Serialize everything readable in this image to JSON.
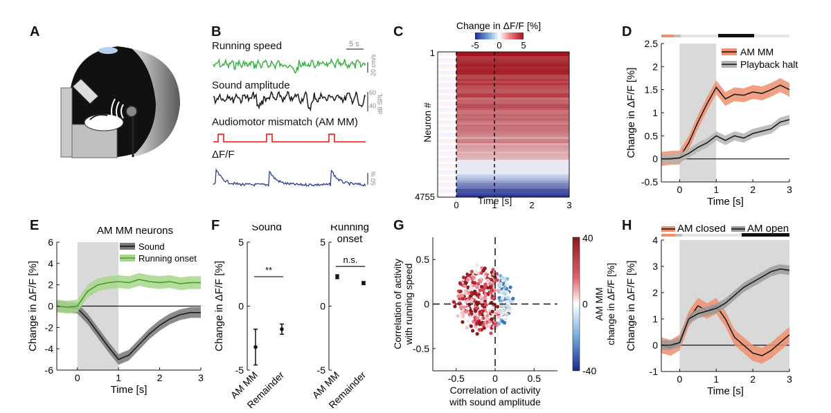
{
  "panels": {
    "A": "A",
    "B": "B",
    "C": "C",
    "D": "D",
    "E": "E",
    "F": "F",
    "G": "G",
    "H": "H"
  },
  "panelB": {
    "trace_running": "Running speed",
    "trace_sound": "Sound amplitude",
    "trace_mismatch": "Audiomotor mismatch (AM MM)",
    "trace_dff": "ΔF/F",
    "scale_time": "5 s",
    "scale_speed": "20 cm/s",
    "scale_db_hi": "60",
    "scale_db_lo": "40",
    "scale_db_unit": "dB SPL",
    "scale_dff": "50 %"
  },
  "colors": {
    "green": "#3cb043",
    "black": "#1a1a1a",
    "red": "#e8332a",
    "blue": "#2a3a8f",
    "orange": "#e8734f",
    "gray": "#9a9a9a",
    "lightgreen": "#8ec96b",
    "shade": "#d9d9d9"
  },
  "chart_data": [
    {
      "id": "C",
      "type": "heatmap",
      "colorbar_title": "Change in ΔF/F [%]",
      "colorbar_ticks": [
        "-5",
        "0",
        "5"
      ],
      "ylabel": "Neuron #",
      "xlabel": "Time [s]",
      "y_ticks": [
        "1",
        "4755"
      ],
      "x_ticks": [
        "0",
        "1",
        "2",
        "3"
      ],
      "xlim": [
        -0.5,
        3
      ],
      "rows": 4755
    },
    {
      "id": "D",
      "type": "line",
      "xlabel": "Time [s]",
      "ylabel": "Change in ΔF/F [%]",
      "xlim": [
        -0.5,
        3
      ],
      "ylim": [
        -0.5,
        2.5
      ],
      "x_ticks": [
        "0",
        "1",
        "2",
        "3"
      ],
      "y_ticks": [
        "-0.5",
        "0",
        "0.5",
        "1",
        "1.5",
        "2",
        "2.5"
      ],
      "shaded_window": [
        0,
        1
      ],
      "legend": [
        "AM MM",
        "Playback halt"
      ],
      "x": [
        -0.5,
        -0.25,
        0,
        0.25,
        0.5,
        0.75,
        1.0,
        1.25,
        1.5,
        1.75,
        2.0,
        2.25,
        2.5,
        2.75,
        3.0
      ],
      "series": [
        {
          "name": "AM MM",
          "values": [
            0.0,
            0.02,
            0.03,
            0.35,
            0.8,
            1.2,
            1.55,
            1.3,
            1.4,
            1.38,
            1.45,
            1.42,
            1.5,
            1.6,
            1.5
          ],
          "err": 0.15
        },
        {
          "name": "Playback halt",
          "values": [
            0.0,
            0.0,
            0.02,
            0.12,
            0.25,
            0.35,
            0.5,
            0.4,
            0.5,
            0.45,
            0.55,
            0.6,
            0.65,
            0.8,
            0.85
          ],
          "err": 0.1
        }
      ]
    },
    {
      "id": "E",
      "type": "line",
      "title": "AM MM neurons",
      "xlabel": "Time [s]",
      "ylabel": "Change in ΔF/F [%]",
      "xlim": [
        -0.5,
        3
      ],
      "ylim": [
        -6,
        6
      ],
      "x_ticks": [
        "0",
        "1",
        "2",
        "3"
      ],
      "y_ticks": [
        "-6",
        "-4",
        "-2",
        "0",
        "2",
        "4",
        "6"
      ],
      "shaded_window": [
        0,
        1
      ],
      "legend": [
        "Sound",
        "Running onset"
      ],
      "x": [
        -0.5,
        -0.25,
        0,
        0.25,
        0.5,
        0.75,
        1.0,
        1.25,
        1.5,
        1.75,
        2.0,
        2.25,
        2.5,
        2.75,
        3.0
      ],
      "series": [
        {
          "name": "Sound",
          "values": [
            0.0,
            -0.1,
            -0.2,
            -1.2,
            -2.5,
            -3.8,
            -5.0,
            -4.6,
            -3.6,
            -2.6,
            -1.8,
            -1.2,
            -0.8,
            -0.6,
            -0.6
          ],
          "err": 0.5
        },
        {
          "name": "Running onset",
          "values": [
            0.0,
            -0.1,
            0.0,
            1.4,
            2.0,
            2.2,
            2.3,
            2.2,
            2.5,
            2.3,
            2.2,
            2.3,
            2.1,
            2.2,
            2.2
          ],
          "err": 0.6
        }
      ]
    },
    {
      "id": "F",
      "type": "scatter",
      "ylabel": "Change in ΔF/F [%]",
      "subplots": [
        {
          "title": "Sound",
          "categories": [
            "AM MM",
            "Remainder"
          ],
          "values": [
            -3.2,
            -1.8
          ],
          "err": [
            1.4,
            0.4
          ],
          "significance": "**",
          "ylim": [
            -5,
            5
          ],
          "y_ticks": [
            "-5",
            "0",
            "5"
          ]
        },
        {
          "title": "Running onset",
          "title_line1": "Running",
          "title_line2": "onset",
          "categories": [
            "AM MM",
            "Remainder"
          ],
          "values": [
            2.3,
            1.8
          ],
          "err": [
            0.15,
            0.12
          ],
          "significance": "n.s.",
          "ylim": [
            -5,
            5
          ],
          "y_ticks": [
            "-5",
            "0",
            "5"
          ]
        }
      ]
    },
    {
      "id": "G",
      "type": "scatter",
      "xlabel_line1": "Correlation of activity",
      "xlabel_line2": "with sound amplitude",
      "ylabel_line1": "Correlation of activity",
      "ylabel_line2": "with running speed",
      "xlim": [
        -0.8,
        0.8
      ],
      "ylim": [
        -0.75,
        0.75
      ],
      "x_ticks": [
        "-0.5",
        "0",
        "0.5"
      ],
      "y_ticks": [
        "-0.5",
        "0",
        "0.5"
      ],
      "colorbar_label_line1": "AM MM",
      "colorbar_label_line2": "change in ΔF/F [%]",
      "colorbar_ticks": [
        "40",
        "0",
        "-40"
      ]
    },
    {
      "id": "H",
      "type": "line",
      "xlabel": "Time [s]",
      "ylabel": "Change in ΔF/F [%]",
      "xlim": [
        -0.5,
        3
      ],
      "ylim": [
        -1,
        4
      ],
      "x_ticks": [
        "0",
        "1",
        "2",
        "3"
      ],
      "y_ticks": [
        "-1",
        "0",
        "1",
        "2",
        "3",
        "4"
      ],
      "shaded_window": [
        0,
        3
      ],
      "legend": [
        "AM closed",
        "AM open"
      ],
      "x": [
        -0.5,
        -0.25,
        0,
        0.25,
        0.5,
        0.75,
        1.0,
        1.25,
        1.5,
        1.75,
        2.0,
        2.25,
        2.5,
        2.75,
        3.0
      ],
      "series": [
        {
          "name": "AM closed",
          "values": [
            0.0,
            -0.1,
            0.1,
            1.0,
            1.5,
            1.3,
            1.5,
            1.0,
            0.3,
            0.0,
            -0.3,
            -0.4,
            -0.2,
            0.1,
            0.4
          ],
          "err": 0.3
        },
        {
          "name": "AM open",
          "values": [
            0.0,
            0.0,
            0.1,
            1.0,
            1.2,
            1.3,
            1.4,
            1.6,
            1.9,
            2.2,
            2.4,
            2.6,
            2.8,
            2.9,
            2.85
          ],
          "err": 0.18
        }
      ]
    }
  ]
}
